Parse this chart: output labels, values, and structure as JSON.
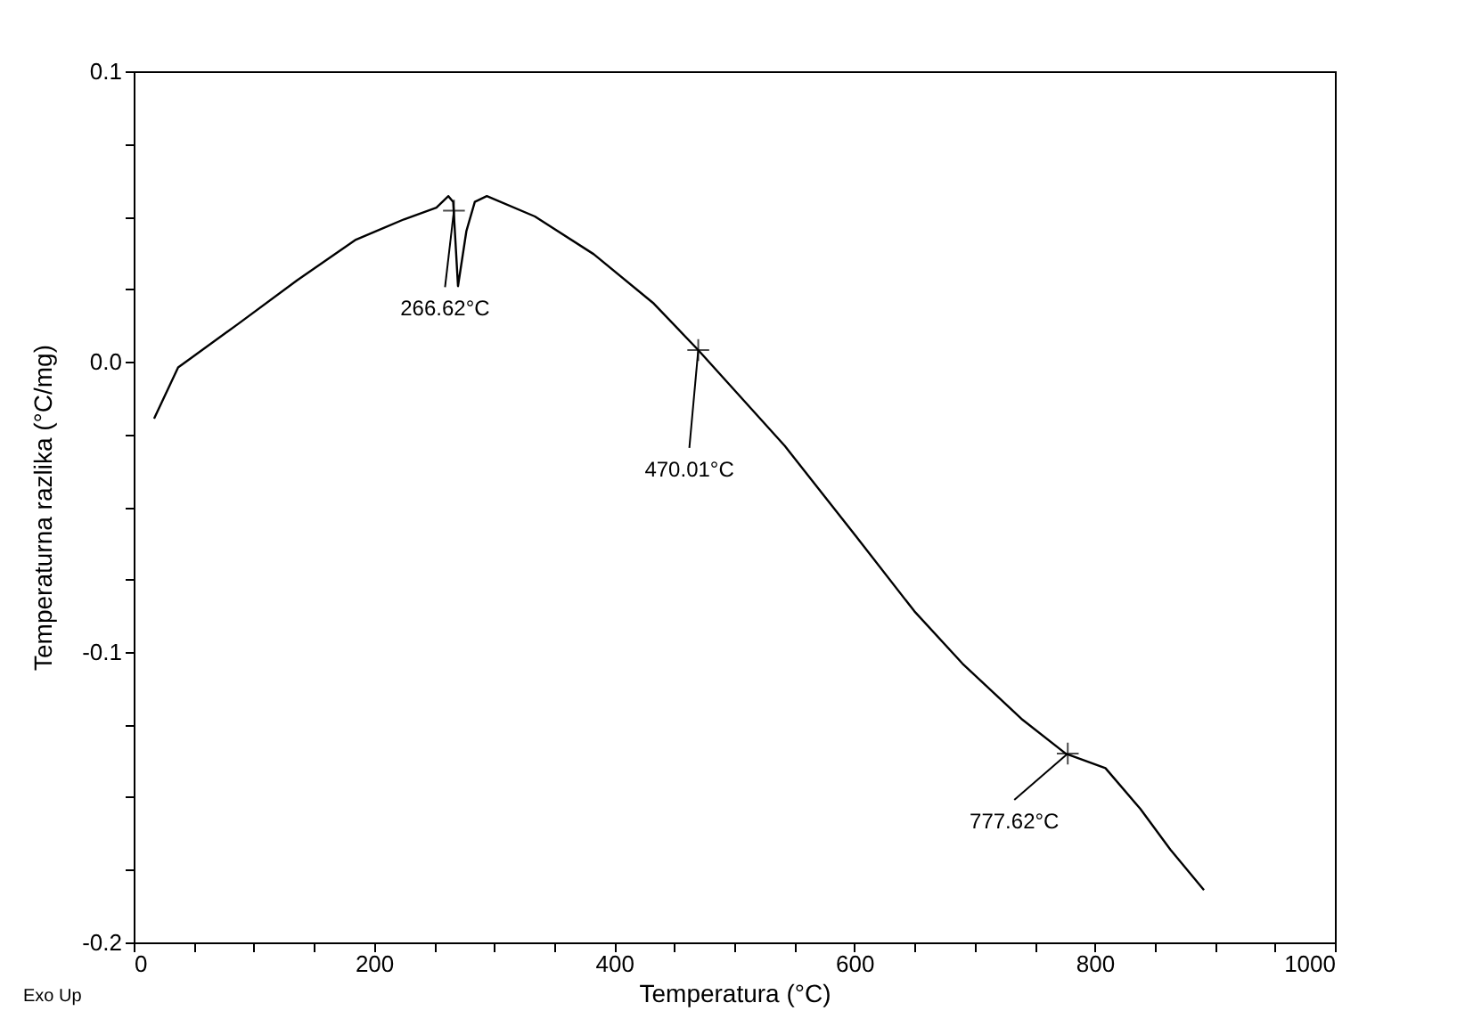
{
  "chart_data": {
    "type": "line",
    "xlabel": "Temperatura (°C)",
    "ylabel": "Temperaturna razlika (°C/mg)",
    "xlim": [
      0,
      1000
    ],
    "ylim": [
      -0.2,
      0.1
    ],
    "xticks": [
      0,
      {
        "value": 50,
        "label": null
      },
      {
        "value": 100,
        "label": null
      },
      {
        "value": 150,
        "label": null
      },
      200,
      {
        "value": 250,
        "label": null
      },
      {
        "value": 300,
        "label": null
      },
      {
        "value": 350,
        "label": null
      },
      400,
      {
        "value": 450,
        "label": null
      },
      {
        "value": 500,
        "label": null
      },
      {
        "value": 550,
        "label": null
      },
      600,
      {
        "value": 650,
        "label": null
      },
      {
        "value": 700,
        "label": null
      },
      {
        "value": 750,
        "label": null
      },
      800,
      {
        "value": 850,
        "label": null
      },
      {
        "value": 900,
        "label": null
      },
      {
        "value": 950,
        "label": null
      },
      1000
    ],
    "yticks": [
      {
        "value": 0.1,
        "label": "0.1"
      },
      {
        "value": 0.075,
        "label": null
      },
      {
        "value": 0.05,
        "label": null
      },
      {
        "value": 0.025,
        "label": null
      },
      {
        "value": 0,
        "label": "0.0"
      },
      {
        "value": -0.025,
        "label": null
      },
      {
        "value": -0.05,
        "label": null
      },
      {
        "value": -0.075,
        "label": null
      },
      {
        "value": -0.1,
        "label": "-0.1"
      },
      {
        "value": -0.125,
        "label": null
      },
      {
        "value": -0.15,
        "label": null
      },
      {
        "value": -0.175,
        "label": null
      },
      {
        "value": -0.2,
        "label": "-0.2"
      }
    ],
    "grid": false,
    "series": [
      {
        "color": "#000000",
        "x": [
          17,
          37,
          47,
          87,
          136,
          185,
          225,
          252,
          262,
          266,
          270,
          277,
          284,
          294,
          334,
          383,
          433,
          470,
          542,
          601,
          650,
          690,
          739,
          776,
          809,
          838,
          863,
          891
        ],
        "values": [
          -0.0196,
          -0.002,
          0.001,
          0.013,
          0.028,
          0.042,
          0.049,
          0.053,
          0.057,
          0.055,
          0.026,
          0.045,
          0.055,
          0.057,
          0.05,
          0.037,
          0.02,
          0.004,
          -0.029,
          -0.06,
          -0.086,
          -0.104,
          -0.123,
          -0.135,
          -0.14,
          -0.154,
          -0.168,
          -0.182
        ]
      }
    ],
    "annotations": [
      {
        "text": "266.62°C",
        "x": 266.62,
        "y": 0.052
      },
      {
        "text": "470.01°C",
        "x": 470.01,
        "y": 0.004
      },
      {
        "text": "777.62°C",
        "x": 777.62,
        "y": -0.135
      },
      "Exo Up"
    ]
  }
}
